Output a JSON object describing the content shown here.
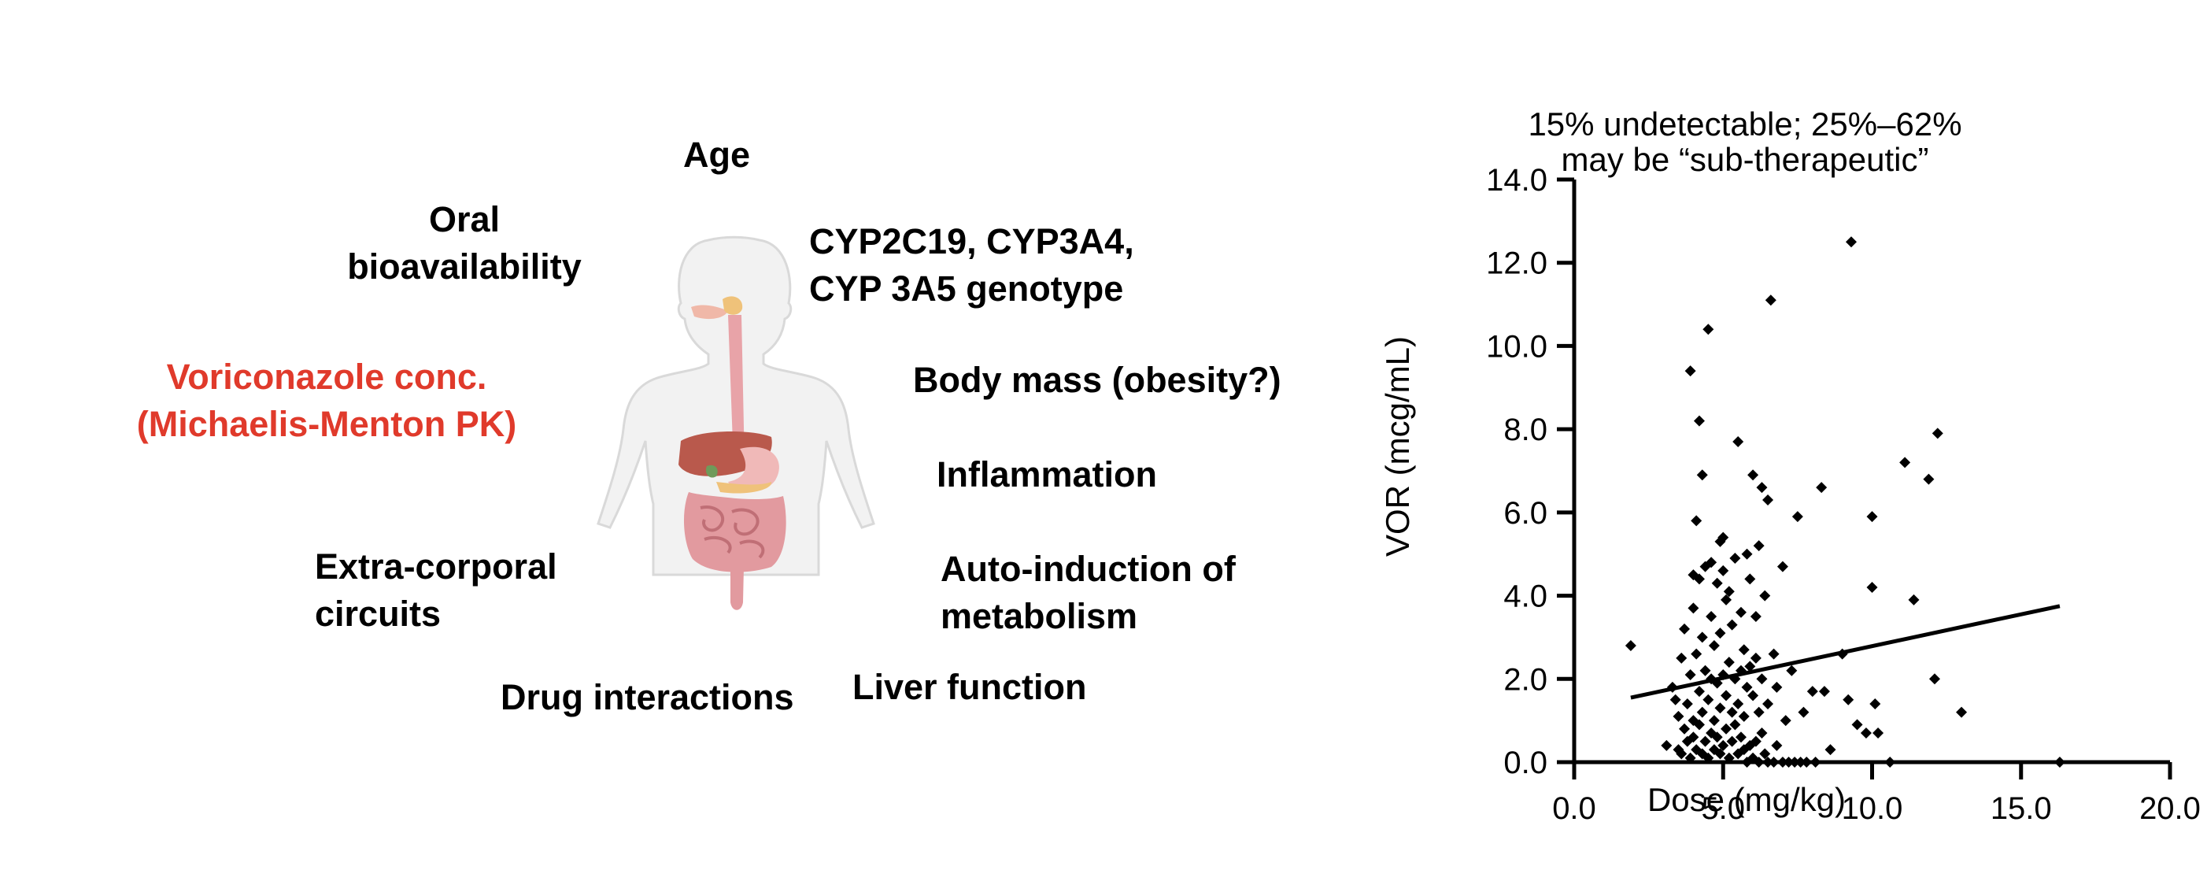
{
  "factors": {
    "age": "Age",
    "oral_line1": "Oral",
    "oral_line2": "bioavailability",
    "cyp_line1": "CYP2C19, CYP3A4,",
    "cyp_line2": "CYP 3A5 genotype",
    "body_mass": "Body mass (obesity?)",
    "vor_line1": "Voriconazole conc.",
    "vor_line2": "(Michaelis-Menton PK)",
    "inflammation": "Inflammation",
    "extra_line1": "Extra-corporal",
    "extra_line2": "circuits",
    "auto_line1": "Auto-induction of",
    "auto_line2": "metabolism",
    "drug_interactions": "Drug interactions",
    "liver_function": "Liver function"
  },
  "colors": {
    "highlight_red": "#e03a2b",
    "body_outline": "#d9d9d9",
    "organ_pink": "#e8a3a8",
    "organ_liver": "#b9594c",
    "mark_black": "#000000"
  },
  "chart_data": {
    "type": "scatter",
    "title_line1": "15% undetectable; 25%–62%",
    "title_line2": "may be “sub-therapeutic”",
    "xlabel": "Dose (mg/kg)",
    "ylabel": "VOR (mcg/mL)",
    "xlim": [
      0,
      20
    ],
    "ylim": [
      0,
      14
    ],
    "x_ticks": [
      "0.0",
      "5.0",
      "10.0",
      "15.0",
      "20.0"
    ],
    "x_tick_values": [
      0,
      5,
      10,
      15,
      20
    ],
    "y_ticks": [
      "0.0",
      "2.0",
      "4.0",
      "6.0",
      "8.0",
      "10.0",
      "12.0",
      "14.0"
    ],
    "y_tick_values": [
      0,
      2,
      4,
      6,
      8,
      10,
      12,
      14
    ],
    "grid": false,
    "marker": "diamond",
    "trendline": {
      "x": [
        1.9,
        16.3
      ],
      "y": [
        1.55,
        3.75
      ]
    },
    "points": [
      [
        1.9,
        2.8
      ],
      [
        3.1,
        0.4
      ],
      [
        3.3,
        1.8
      ],
      [
        3.4,
        1.5
      ],
      [
        3.5,
        0.3
      ],
      [
        3.5,
        1.1
      ],
      [
        3.6,
        0.2
      ],
      [
        3.6,
        2.5
      ],
      [
        3.7,
        0.8
      ],
      [
        3.7,
        3.2
      ],
      [
        3.8,
        0.5
      ],
      [
        3.8,
        1.4
      ],
      [
        3.9,
        0.1
      ],
      [
        3.9,
        2.1
      ],
      [
        3.9,
        9.4
      ],
      [
        4.0,
        0.6
      ],
      [
        4.0,
        1.0
      ],
      [
        4.0,
        3.7
      ],
      [
        4.0,
        4.5
      ],
      [
        4.1,
        0.3
      ],
      [
        4.1,
        2.6
      ],
      [
        4.1,
        5.8
      ],
      [
        4.2,
        0.9
      ],
      [
        4.2,
        1.7
      ],
      [
        4.2,
        4.4
      ],
      [
        4.2,
        8.2
      ],
      [
        4.3,
        0.2
      ],
      [
        4.3,
        1.2
      ],
      [
        4.3,
        3.0
      ],
      [
        4.3,
        6.9
      ],
      [
        4.4,
        0.5
      ],
      [
        4.4,
        2.2
      ],
      [
        4.4,
        4.7
      ],
      [
        4.5,
        0.1
      ],
      [
        4.5,
        1.5
      ],
      [
        4.5,
        10.4
      ],
      [
        4.6,
        0.7
      ],
      [
        4.6,
        2.0
      ],
      [
        4.6,
        3.5
      ],
      [
        4.6,
        4.8
      ],
      [
        4.7,
        0.3
      ],
      [
        4.7,
        1.0
      ],
      [
        4.7,
        2.8
      ],
      [
        4.8,
        0.6
      ],
      [
        4.8,
        1.9
      ],
      [
        4.8,
        4.3
      ],
      [
        4.9,
        0.2
      ],
      [
        4.9,
        1.3
      ],
      [
        4.9,
        3.1
      ],
      [
        4.9,
        5.3
      ],
      [
        5.0,
        0.4
      ],
      [
        5.0,
        2.1
      ],
      [
        5.0,
        4.6
      ],
      [
        5.0,
        5.4
      ],
      [
        5.1,
        0.8
      ],
      [
        5.1,
        1.6
      ],
      [
        5.1,
        3.9
      ],
      [
        5.2,
        0.1
      ],
      [
        5.2,
        2.4
      ],
      [
        5.2,
        4.1
      ],
      [
        5.3,
        0.5
      ],
      [
        5.3,
        1.2
      ],
      [
        5.3,
        3.3
      ],
      [
        5.4,
        0.9
      ],
      [
        5.4,
        2.0
      ],
      [
        5.4,
        4.9
      ],
      [
        5.5,
        0.2
      ],
      [
        5.5,
        1.4
      ],
      [
        5.5,
        7.7
      ],
      [
        5.6,
        0.6
      ],
      [
        5.6,
        2.2
      ],
      [
        5.6,
        3.6
      ],
      [
        5.7,
        0.3
      ],
      [
        5.7,
        1.1
      ],
      [
        5.7,
        2.7
      ],
      [
        5.8,
        0.0
      ],
      [
        5.8,
        1.8
      ],
      [
        5.8,
        5.0
      ],
      [
        5.9,
        0.4
      ],
      [
        5.9,
        2.3
      ],
      [
        5.9,
        4.4
      ],
      [
        6.0,
        0.1
      ],
      [
        6.0,
        1.6
      ],
      [
        6.0,
        6.9
      ],
      [
        6.1,
        0.5
      ],
      [
        6.1,
        2.5
      ],
      [
        6.1,
        3.5
      ],
      [
        6.2,
        0.0
      ],
      [
        6.2,
        1.2
      ],
      [
        6.2,
        5.2
      ],
      [
        6.3,
        0.7
      ],
      [
        6.3,
        2.0
      ],
      [
        6.3,
        6.6
      ],
      [
        6.4,
        0.2
      ],
      [
        6.4,
        4.0
      ],
      [
        6.5,
        0.0
      ],
      [
        6.5,
        1.4
      ],
      [
        6.5,
        6.3
      ],
      [
        6.6,
        11.1
      ],
      [
        6.7,
        0.0
      ],
      [
        6.7,
        2.6
      ],
      [
        6.8,
        0.4
      ],
      [
        6.8,
        1.8
      ],
      [
        7.0,
        0.0
      ],
      [
        7.0,
        4.7
      ],
      [
        7.1,
        1.0
      ],
      [
        7.2,
        0.0
      ],
      [
        7.3,
        2.2
      ],
      [
        7.4,
        0.0
      ],
      [
        7.5,
        5.9
      ],
      [
        7.6,
        0.0
      ],
      [
        7.7,
        1.2
      ],
      [
        7.8,
        0.0
      ],
      [
        8.0,
        1.7
      ],
      [
        8.1,
        0.0
      ],
      [
        8.3,
        6.6
      ],
      [
        8.4,
        1.7
      ],
      [
        8.6,
        0.3
      ],
      [
        9.0,
        2.6
      ],
      [
        9.2,
        1.5
      ],
      [
        9.3,
        12.5
      ],
      [
        9.5,
        0.9
      ],
      [
        9.8,
        0.7
      ],
      [
        10.0,
        5.9
      ],
      [
        10.0,
        4.2
      ],
      [
        10.1,
        1.4
      ],
      [
        10.2,
        0.7
      ],
      [
        10.6,
        0.0
      ],
      [
        11.1,
        7.2
      ],
      [
        11.4,
        3.9
      ],
      [
        11.9,
        6.8
      ],
      [
        12.1,
        2.0
      ],
      [
        12.2,
        7.9
      ],
      [
        13.0,
        1.2
      ],
      [
        16.3,
        0.0
      ]
    ]
  }
}
